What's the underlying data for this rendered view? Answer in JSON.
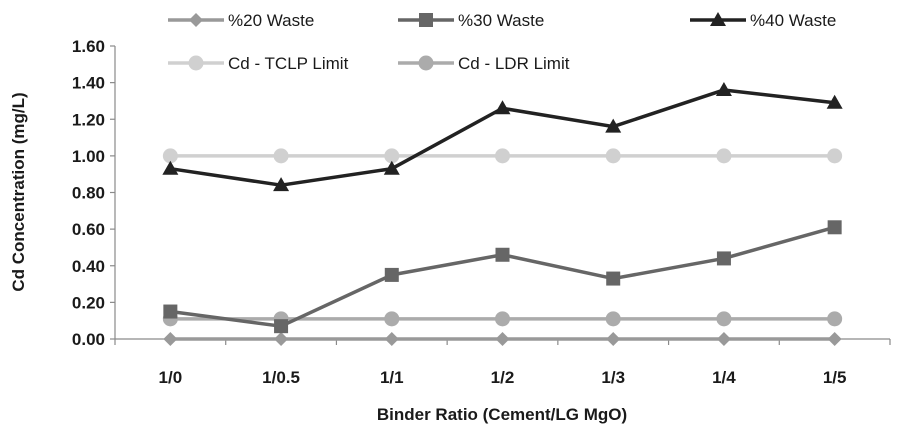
{
  "chart_data": {
    "type": "line",
    "title": "",
    "xlabel": "Binder Ratio (Cement/LG MgO)",
    "ylabel": "Cd Concentration (mg/L)",
    "categories": [
      "1/0",
      "1/0.5",
      "1/1",
      "1/2",
      "1/3",
      "1/4",
      "1/5"
    ],
    "ylim": [
      0,
      1.6
    ],
    "yticks": [
      "0.00",
      "0.20",
      "0.40",
      "0.60",
      "0.80",
      "1.00",
      "1.20",
      "1.40",
      "1.60"
    ],
    "grid": false,
    "legend_position": "top",
    "series": [
      {
        "name": "%20 Waste",
        "color": "#999999",
        "marker": "diamond",
        "values": [
          0.0,
          0.0,
          0.0,
          0.0,
          0.0,
          0.0,
          0.0
        ]
      },
      {
        "name": "%30 Waste",
        "color": "#666666",
        "marker": "square",
        "values": [
          0.15,
          0.07,
          0.35,
          0.46,
          0.33,
          0.44,
          0.61
        ]
      },
      {
        "name": "%40 Waste",
        "color": "#222222",
        "marker": "triangle",
        "values": [
          0.93,
          0.84,
          0.93,
          1.26,
          1.16,
          1.36,
          1.29
        ]
      },
      {
        "name": "Cd - TCLP Limit",
        "color": "#d0d0d0",
        "marker": "circle",
        "values": [
          1.0,
          1.0,
          1.0,
          1.0,
          1.0,
          1.0,
          1.0
        ]
      },
      {
        "name": "Cd - LDR Limit",
        "color": "#ababab",
        "marker": "circle",
        "values": [
          0.11,
          0.11,
          0.11,
          0.11,
          0.11,
          0.11,
          0.11
        ]
      }
    ]
  }
}
